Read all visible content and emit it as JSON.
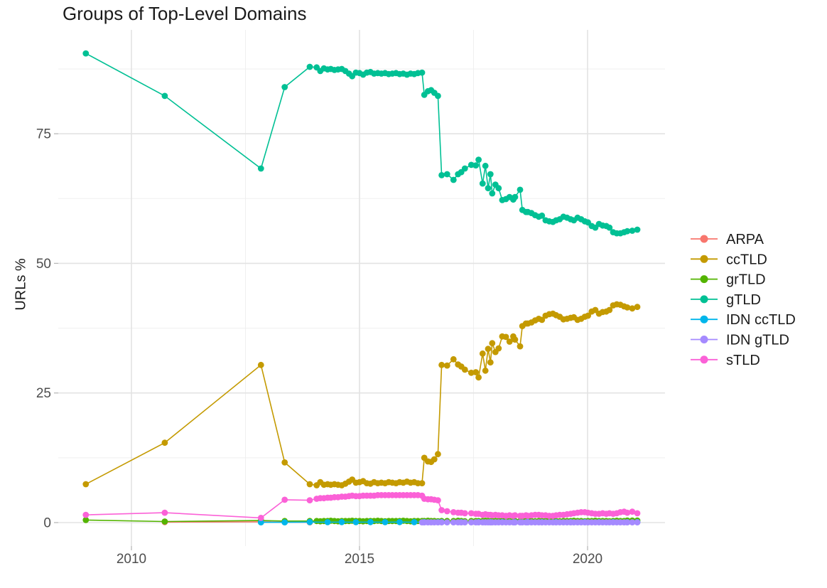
{
  "chart_data": {
    "type": "line",
    "title": "Groups of Top-Level Domains",
    "xlabel": "",
    "ylabel": "URLs %",
    "x_ticks": [
      2010,
      2015,
      2020
    ],
    "y_ticks": [
      0,
      25,
      50,
      75
    ],
    "xlim": [
      2008.4,
      2021.7
    ],
    "ylim": [
      -4.5,
      95
    ],
    "grid": true,
    "legend_position": "right",
    "x": [
      2009.0,
      2010.73,
      2012.84,
      2013.36,
      2013.91,
      2014.06,
      2014.14,
      2014.22,
      2014.3,
      2014.37,
      2014.45,
      2014.53,
      2014.61,
      2014.69,
      2014.77,
      2014.84,
      2014.92,
      2015.0,
      2015.08,
      2015.16,
      2015.24,
      2015.32,
      2015.4,
      2015.48,
      2015.56,
      2015.64,
      2015.72,
      2015.8,
      2015.88,
      2015.96,
      2016.04,
      2016.12,
      2016.2,
      2016.28,
      2016.37,
      2016.42,
      2016.5,
      2016.57,
      2016.64,
      2016.72,
      2016.8,
      2016.92,
      2017.06,
      2017.16,
      2017.23,
      2017.31,
      2017.45,
      2017.55,
      2017.61,
      2017.7,
      2017.76,
      2017.82,
      2017.87,
      2017.91,
      2017.98,
      2018.05,
      2018.13,
      2018.21,
      2018.29,
      2018.37,
      2018.41,
      2018.52,
      2018.57,
      2018.65,
      2018.69,
      2018.77,
      2018.85,
      2018.93,
      2019.0,
      2019.08,
      2019.16,
      2019.24,
      2019.31,
      2019.39,
      2019.47,
      2019.55,
      2019.63,
      2019.7,
      2019.78,
      2019.86,
      2019.94,
      2020.01,
      2020.09,
      2020.17,
      2020.25,
      2020.33,
      2020.41,
      2020.48,
      2020.56,
      2020.64,
      2020.72,
      2020.8,
      2020.87,
      2020.98,
      2021.09
    ],
    "series": [
      {
        "name": "ARPA",
        "color": "#F8766D",
        "values": [
          null,
          0.1,
          0.15,
          0.1,
          0.05
        ]
      },
      {
        "name": "ccTLD",
        "color": "#C49A00",
        "values": [
          7.4,
          15.4,
          30.4,
          11.6,
          7.4,
          7.2,
          7.8,
          7.3,
          7.4,
          7.3,
          7.4,
          7.3,
          7.2,
          7.5,
          7.9,
          8.3,
          7.7,
          7.8,
          8.0,
          7.6,
          7.5,
          7.8,
          7.6,
          7.7,
          7.6,
          7.8,
          7.7,
          7.6,
          7.8,
          7.7,
          7.9,
          7.7,
          7.8,
          7.6,
          7.6,
          12.5,
          11.8,
          11.7,
          12.2,
          13.2,
          30.4,
          30.3,
          31.5,
          30.5,
          30.1,
          29.5,
          28.9,
          29.0,
          28.0,
          32.6,
          29.3,
          33.5,
          30.9,
          34.6,
          32.9,
          33.6,
          35.9,
          35.8,
          34.9,
          35.9,
          35.3,
          34.0,
          37.9,
          38.4,
          38.4,
          38.6,
          39.0,
          39.3,
          39.1,
          39.9,
          40.2,
          40.3,
          40.0,
          39.7,
          39.2,
          39.3,
          39.5,
          39.6,
          39.1,
          39.3,
          39.7,
          39.9,
          40.7,
          41.0,
          40.3,
          40.6,
          40.7,
          41.0,
          41.9,
          42.1,
          42.0,
          41.7,
          41.5,
          41.3,
          41.6
        ]
      },
      {
        "name": "grTLD",
        "color": "#53B400",
        "values": [
          0.5,
          0.2,
          0.4,
          0.3,
          0.3,
          0.3,
          0.25,
          0.3,
          0.3,
          0.35,
          0.3,
          0.25,
          0.3,
          0.3,
          0.3,
          0.35,
          0.3,
          0.3,
          0.25,
          0.3,
          0.3,
          0.3,
          0.35,
          0.3,
          0.25,
          0.3,
          0.3,
          0.3,
          0.3,
          0.35,
          0.3,
          0.25,
          0.3,
          0.3,
          0.3,
          0.3,
          0.35,
          0.3,
          0.3,
          0.25,
          0.3,
          0.3,
          0.3,
          0.35,
          0.3,
          0.25,
          0.3,
          0.3,
          0.3,
          0.3,
          0.35,
          0.3,
          0.25,
          0.3,
          0.3,
          0.3,
          0.35,
          0.3,
          0.3,
          0.25,
          0.3,
          0.3,
          0.3,
          0.3,
          0.35,
          0.3,
          0.25,
          0.3,
          0.3,
          0.3,
          0.35,
          0.3,
          0.3,
          0.25,
          0.3,
          0.3,
          0.3,
          0.35,
          0.3,
          0.3,
          0.25,
          0.3,
          0.3,
          0.35,
          0.3,
          0.3,
          0.3,
          0.25,
          0.3,
          0.35,
          0.3,
          0.3,
          0.4,
          0.4,
          0.4
        ]
      },
      {
        "name": "gTLD",
        "color": "#00C094",
        "values": [
          90.5,
          82.3,
          68.3,
          84.0,
          87.9,
          87.8,
          87.1,
          87.6,
          87.4,
          87.5,
          87.3,
          87.4,
          87.5,
          87.1,
          86.6,
          86.1,
          86.8,
          86.7,
          86.4,
          86.8,
          86.9,
          86.6,
          86.7,
          86.6,
          86.7,
          86.5,
          86.6,
          86.7,
          86.5,
          86.6,
          86.4,
          86.6,
          86.5,
          86.7,
          86.8,
          82.5,
          83.2,
          83.4,
          82.9,
          82.3,
          67.0,
          67.2,
          66.1,
          67.2,
          67.6,
          68.3,
          69.0,
          68.9,
          70.0,
          65.4,
          68.8,
          64.5,
          67.2,
          63.5,
          65.2,
          64.5,
          62.2,
          62.4,
          62.8,
          62.3,
          62.8,
          64.2,
          60.3,
          59.9,
          59.9,
          59.7,
          59.3,
          59.0,
          59.2,
          58.3,
          58.1,
          58.0,
          58.3,
          58.5,
          59.0,
          58.8,
          58.5,
          58.3,
          58.8,
          58.5,
          58.1,
          57.9,
          57.2,
          56.9,
          57.6,
          57.3,
          57.2,
          56.9,
          56.0,
          55.8,
          55.8,
          56.0,
          56.2,
          56.3,
          56.5
        ]
      },
      {
        "name": "IDN ccTLD",
        "color": "#00B6EB",
        "values": [
          null,
          null,
          0.05,
          0.05,
          0.1,
          null,
          null,
          null,
          0.08,
          null,
          null,
          null,
          0.1,
          null,
          null,
          null,
          0.08,
          null,
          null,
          null,
          0.1,
          null,
          null,
          null,
          0.08,
          null,
          null,
          null,
          0.1,
          null,
          null,
          null,
          0.08,
          null,
          null,
          0.1,
          null,
          null,
          null,
          0.08,
          0.1,
          null,
          null,
          null,
          0.08,
          null,
          null,
          null,
          0.1,
          null,
          null,
          null,
          0.08,
          null,
          null,
          null,
          0.1,
          null,
          null,
          null,
          0.08,
          null,
          null,
          null,
          0.1,
          null,
          null,
          null,
          0.08,
          null,
          null,
          null,
          0.1,
          null,
          null,
          null,
          0.08,
          null,
          null,
          null,
          0.1,
          null,
          null,
          null,
          0.08,
          null,
          null,
          null,
          0.1,
          null,
          null,
          null,
          0.08,
          null,
          0.1
        ]
      },
      {
        "name": "IDN gTLD",
        "color": "#A58AFF",
        "pad_start": 34,
        "values": [
          0.05,
          0.05,
          0.05,
          0.05,
          0.05,
          0.05,
          0.05,
          0.05,
          0.05,
          0.05,
          0.05,
          0.05,
          0.05,
          0.05,
          0.05,
          0.05,
          0.05,
          0.05,
          0.05,
          0.05,
          0.05,
          0.05,
          0.05,
          0.05,
          0.05,
          0.05,
          0.05,
          0.05,
          0.05,
          0.05,
          0.05,
          0.05,
          0.05,
          0.05,
          0.05,
          0.05,
          0.05,
          0.05,
          0.05,
          0.05,
          0.05,
          0.05,
          0.05,
          0.05,
          0.05,
          0.05,
          0.05,
          0.05,
          0.05,
          0.05,
          0.05,
          0.05,
          0.05,
          0.05,
          0.05,
          0.05,
          0.05,
          0.05,
          0.05,
          0.05,
          0.05
        ]
      },
      {
        "name": "sTLD",
        "color": "#FB61D7",
        "values": [
          1.5,
          1.9,
          0.9,
          4.4,
          4.3,
          4.6,
          4.7,
          4.7,
          4.8,
          4.8,
          4.9,
          4.9,
          5.0,
          5.0,
          5.1,
          5.2,
          5.1,
          5.1,
          5.2,
          5.2,
          5.2,
          5.2,
          5.3,
          5.3,
          5.3,
          5.3,
          5.3,
          5.3,
          5.3,
          5.3,
          5.3,
          5.3,
          5.3,
          5.3,
          5.2,
          4.6,
          4.5,
          4.5,
          4.4,
          4.3,
          2.4,
          2.2,
          2.0,
          1.9,
          1.9,
          1.8,
          1.8,
          1.7,
          1.7,
          1.5,
          1.6,
          1.5,
          1.5,
          1.4,
          1.5,
          1.4,
          1.4,
          1.3,
          1.4,
          1.3,
          1.4,
          1.3,
          1.3,
          1.4,
          1.3,
          1.4,
          1.5,
          1.5,
          1.4,
          1.4,
          1.3,
          1.3,
          1.4,
          1.5,
          1.5,
          1.6,
          1.7,
          1.8,
          1.9,
          2.0,
          2.0,
          1.9,
          1.8,
          1.7,
          1.7,
          1.8,
          1.7,
          1.8,
          1.7,
          1.8,
          2.0,
          2.1,
          1.9,
          2.1,
          1.8
        ]
      }
    ]
  }
}
